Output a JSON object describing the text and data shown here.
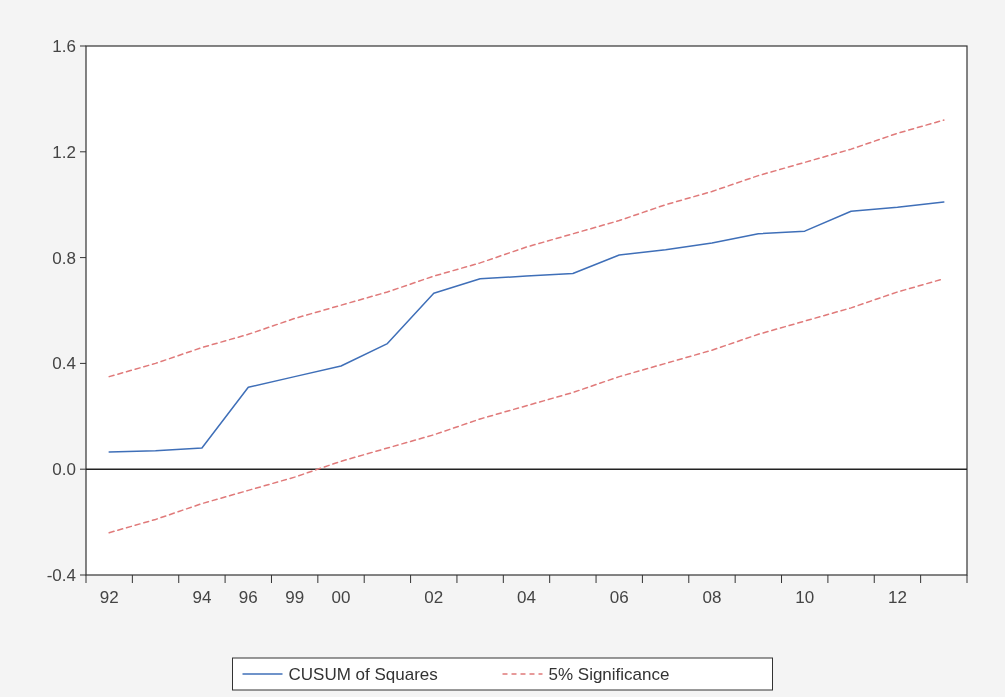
{
  "chart_data": {
    "type": "line",
    "categories": [
      "92",
      null,
      "94",
      "96",
      "99",
      "00",
      null,
      "02",
      null,
      "04",
      null,
      "06",
      null,
      "08",
      null,
      "10",
      null,
      "12",
      null
    ],
    "series": [
      {
        "name": "CUSUM of Squares",
        "color": "#3f6fb8",
        "line_style": "solid",
        "values": [
          0.065,
          0.07,
          0.08,
          0.31,
          0.35,
          0.39,
          0.475,
          0.665,
          0.72,
          0.73,
          0.74,
          0.81,
          0.83,
          0.855,
          0.89,
          0.9,
          0.975,
          0.99,
          1.01
        ]
      },
      {
        "name": "5% Significance",
        "color": "#e07a7a",
        "line_style": "dashed",
        "values": [
          0.35,
          0.4,
          0.46,
          0.51,
          0.57,
          0.62,
          0.67,
          0.73,
          0.78,
          0.84,
          0.89,
          0.94,
          1.0,
          1.05,
          1.11,
          1.16,
          1.21,
          1.27,
          1.32
        ]
      },
      {
        "color": "#e07a7a",
        "line_style": "dashed",
        "values": [
          -0.24,
          -0.19,
          -0.13,
          -0.08,
          -0.03,
          0.03,
          0.08,
          0.13,
          0.19,
          0.24,
          0.29,
          0.35,
          0.4,
          0.45,
          0.51,
          0.56,
          0.61,
          0.67,
          0.72
        ]
      }
    ],
    "ylim": [
      -0.4,
      1.6
    ],
    "yticks": [
      {
        "value": -0.4,
        "label": "-0.4"
      },
      {
        "value": 0,
        "label": "0.0"
      },
      {
        "value": 0.4,
        "label": "0.4"
      },
      {
        "value": 0.8,
        "label": "0.8"
      },
      {
        "value": 1.2,
        "label": "1.2"
      },
      {
        "value": 1.6,
        "label": "1.6"
      }
    ],
    "ref_lines": [
      {
        "axis": "y",
        "value": 0,
        "color": "#222222"
      }
    ],
    "grid": false,
    "legend": "bottom",
    "marker": "none"
  }
}
